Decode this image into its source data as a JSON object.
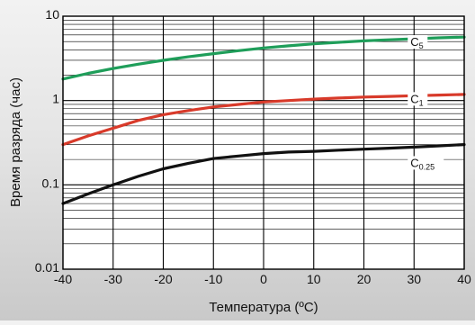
{
  "chart_data": {
    "type": "line",
    "xlabel": "Температура (ºC)",
    "ylabel": "Время разряда (час)",
    "xlim": [
      -40,
      40
    ],
    "ylim": [
      0.01,
      10
    ],
    "yscale": "log",
    "grid": true,
    "x_ticks": [
      "-40",
      "-30",
      "-20",
      "-10",
      "0",
      "10",
      "20",
      "30",
      "40"
    ],
    "y_ticks": [
      {
        "value": 10,
        "label": "10"
      },
      {
        "value": 1,
        "label": "1"
      },
      {
        "value": 0.1,
        "label": "0.1"
      },
      {
        "value": 0.01,
        "label": "0.01"
      }
    ],
    "series": [
      {
        "name": "C5",
        "label": {
          "main": "C",
          "sub": "5"
        },
        "color": "#1f9e5a",
        "x": [
          -40,
          -35,
          -30,
          -25,
          -20,
          -15,
          -10,
          -5,
          0,
          5,
          10,
          15,
          20,
          25,
          30,
          35,
          40
        ],
        "y": [
          1.8,
          2.1,
          2.4,
          2.7,
          3.0,
          3.3,
          3.6,
          3.9,
          4.2,
          4.45,
          4.7,
          4.9,
          5.1,
          5.25,
          5.4,
          5.55,
          5.65
        ]
      },
      {
        "name": "C1",
        "label": {
          "main": "C",
          "sub": "1"
        },
        "color": "#d83a2a",
        "x": [
          -40,
          -35,
          -30,
          -25,
          -20,
          -15,
          -10,
          -5,
          0,
          5,
          10,
          15,
          20,
          25,
          30,
          35,
          40
        ],
        "y": [
          0.3,
          0.38,
          0.47,
          0.58,
          0.68,
          0.76,
          0.84,
          0.9,
          0.96,
          1.0,
          1.04,
          1.07,
          1.1,
          1.12,
          1.14,
          1.16,
          1.18
        ]
      },
      {
        "name": "C0.25",
        "label": {
          "main": "C",
          "sub": "0.25"
        },
        "color": "#111111",
        "x": [
          -40,
          -35,
          -30,
          -25,
          -20,
          -15,
          -10,
          -5,
          0,
          5,
          10,
          15,
          20,
          25,
          30,
          35,
          40
        ],
        "y": [
          0.06,
          0.078,
          0.1,
          0.126,
          0.155,
          0.18,
          0.205,
          0.22,
          0.235,
          0.245,
          0.25,
          0.258,
          0.265,
          0.272,
          0.28,
          0.29,
          0.3
        ]
      }
    ]
  }
}
